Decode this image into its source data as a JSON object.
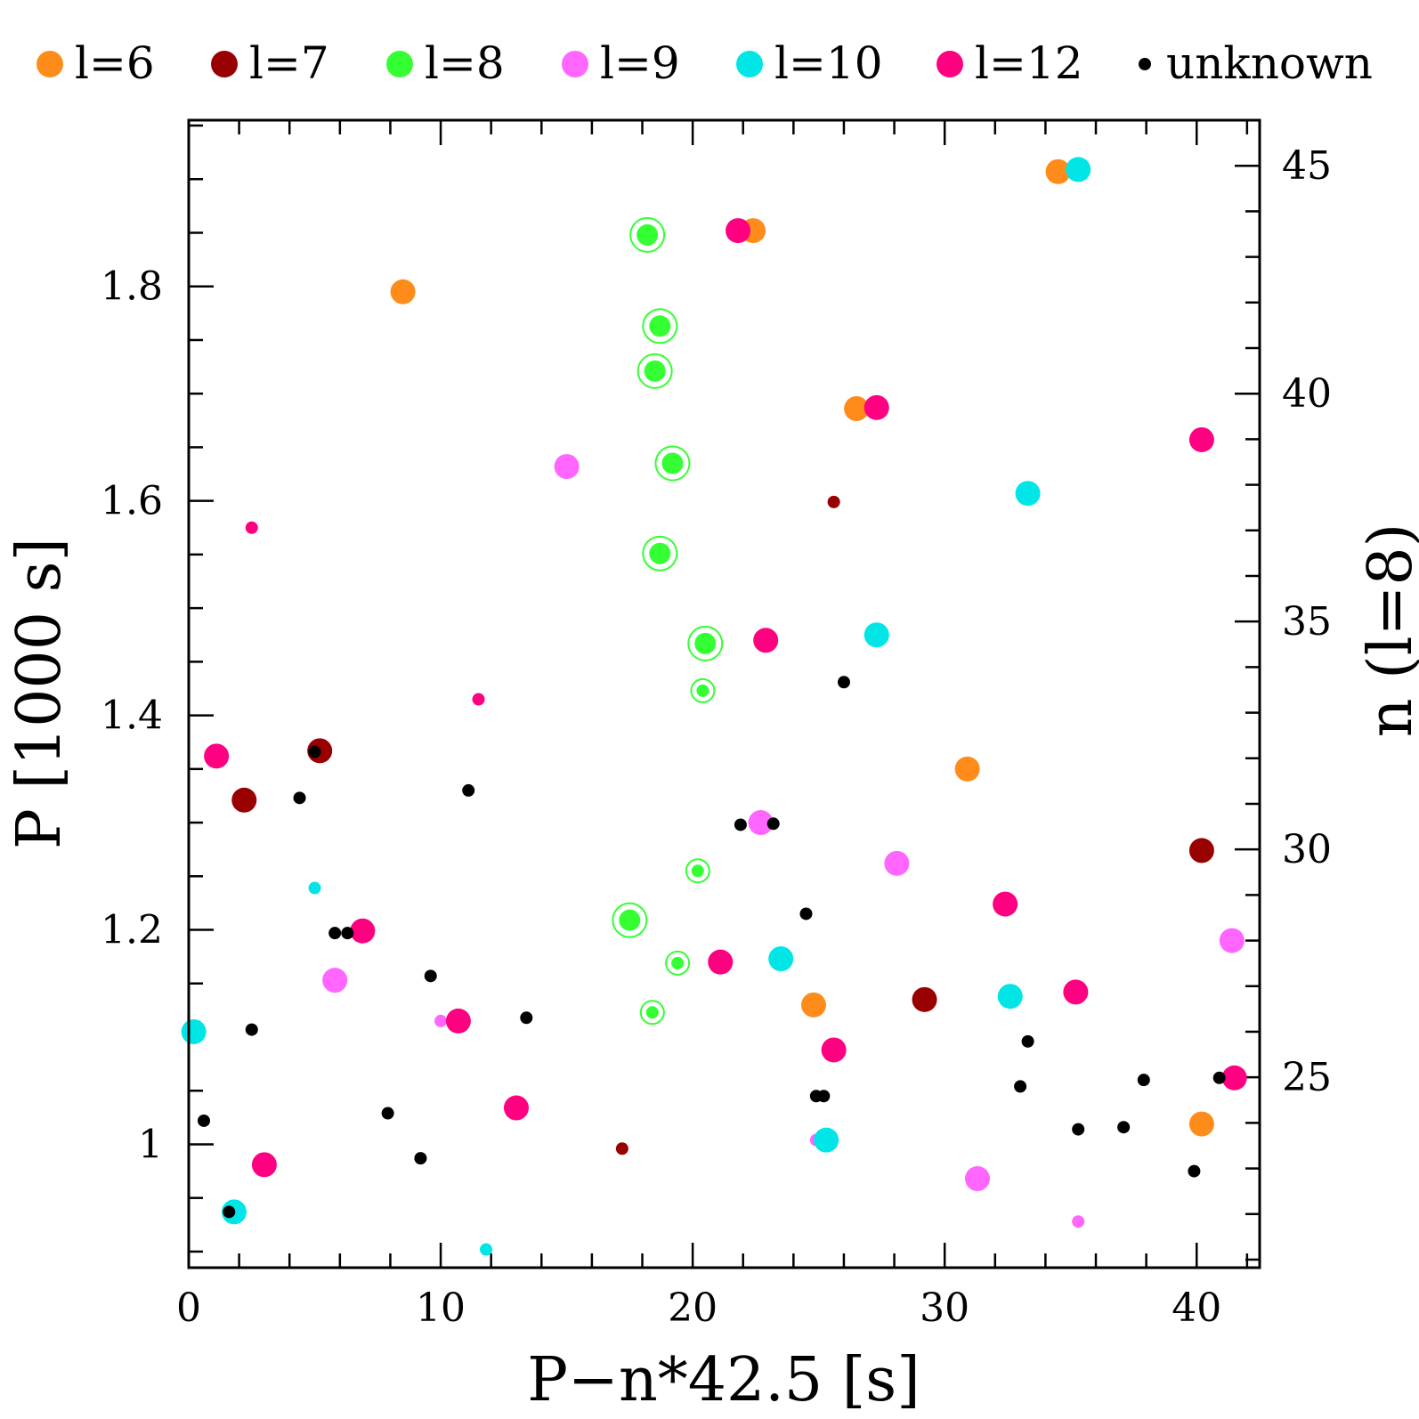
{
  "chart_data": {
    "type": "scatter",
    "xlabel": "P−n*42.5 [s]",
    "ylabel": "P [1000 s]",
    "y2label": "n (l=8)",
    "xlim": [
      0,
      42.5
    ],
    "ylim": [
      0.885,
      1.955
    ],
    "xticks": [
      0,
      10,
      20,
      30,
      40
    ],
    "xtick_labels": [
      "0",
      "10",
      "20",
      "30",
      "40"
    ],
    "yticks": [
      1.0,
      1.2,
      1.4,
      1.6,
      1.8
    ],
    "ytick_labels": [
      "1",
      "1.2",
      "1.4",
      "1.6",
      "1.8"
    ],
    "y2ticks": [
      25,
      30,
      35,
      40,
      45
    ],
    "y2tick_labels": [
      "25",
      "30",
      "35",
      "40",
      "45"
    ],
    "y2_period_per_n": 42.5,
    "legend_position": "top",
    "series": [
      {
        "name": "l=6",
        "label": "l=6",
        "color": "#ff8c1a",
        "points": [
          [
            34.5,
            1.907,
            "L"
          ],
          [
            22.4,
            1.852,
            "L"
          ],
          [
            8.5,
            1.795,
            "L"
          ],
          [
            26.5,
            1.686,
            "L"
          ],
          [
            30.9,
            1.35,
            "L"
          ],
          [
            24.8,
            1.13,
            "L"
          ],
          [
            40.2,
            1.019,
            "L"
          ]
        ]
      },
      {
        "name": "l=7",
        "label": "l=7",
        "color": "#990000",
        "points": [
          [
            5.2,
            1.367,
            "L"
          ],
          [
            2.2,
            1.321,
            "L"
          ],
          [
            40.2,
            1.274,
            "L"
          ],
          [
            29.2,
            1.135,
            "L"
          ],
          [
            25.6,
            1.599,
            "S"
          ],
          [
            17.2,
            0.996,
            "S"
          ]
        ]
      },
      {
        "name": "l=8",
        "label": "l=8",
        "color": "#33ff33",
        "ringed": true,
        "points": [
          [
            18.2,
            1.848,
            "L"
          ],
          [
            18.7,
            1.763,
            "L"
          ],
          [
            18.5,
            1.721,
            "L"
          ],
          [
            19.2,
            1.635,
            "L"
          ],
          [
            18.7,
            1.551,
            "L"
          ],
          [
            20.5,
            1.467,
            "L"
          ],
          [
            17.5,
            1.209,
            "L"
          ],
          [
            20.4,
            1.423,
            "S"
          ],
          [
            20.2,
            1.255,
            "S"
          ],
          [
            19.4,
            1.169,
            "S"
          ],
          [
            18.4,
            1.123,
            "S"
          ]
        ]
      },
      {
        "name": "l=9",
        "label": "l=9",
        "color": "#ff66ff",
        "points": [
          [
            15.0,
            1.632,
            "L"
          ],
          [
            22.7,
            1.3,
            "L"
          ],
          [
            28.1,
            1.262,
            "L"
          ],
          [
            5.8,
            1.153,
            "L"
          ],
          [
            41.4,
            1.19,
            "L"
          ],
          [
            31.3,
            0.968,
            "L"
          ],
          [
            10.0,
            1.115,
            "S"
          ],
          [
            24.9,
            1.004,
            "S"
          ],
          [
            35.3,
            0.928,
            "S"
          ]
        ]
      },
      {
        "name": "l=10",
        "label": "l=10",
        "color": "#00e6e6",
        "points": [
          [
            35.3,
            1.909,
            "L"
          ],
          [
            33.3,
            1.607,
            "L"
          ],
          [
            27.3,
            1.475,
            "L"
          ],
          [
            23.5,
            1.173,
            "L"
          ],
          [
            32.6,
            1.138,
            "L"
          ],
          [
            0.2,
            1.105,
            "L"
          ],
          [
            25.3,
            1.004,
            "L"
          ],
          [
            1.8,
            0.937,
            "L"
          ],
          [
            5.0,
            1.239,
            "S"
          ],
          [
            11.8,
            0.902,
            "S"
          ]
        ]
      },
      {
        "name": "l=12",
        "label": "l=12",
        "color": "#ff0080",
        "points": [
          [
            21.8,
            1.852,
            "L"
          ],
          [
            27.3,
            1.687,
            "L"
          ],
          [
            40.2,
            1.657,
            "L"
          ],
          [
            22.9,
            1.47,
            "L"
          ],
          [
            1.1,
            1.362,
            "L"
          ],
          [
            32.4,
            1.224,
            "L"
          ],
          [
            6.9,
            1.199,
            "L"
          ],
          [
            21.1,
            1.17,
            "L"
          ],
          [
            35.2,
            1.142,
            "L"
          ],
          [
            10.7,
            1.115,
            "L"
          ],
          [
            25.6,
            1.088,
            "L"
          ],
          [
            41.5,
            1.062,
            "L"
          ],
          [
            13.0,
            1.034,
            "L"
          ],
          [
            3.0,
            0.981,
            "L"
          ],
          [
            2.5,
            1.575,
            "S"
          ],
          [
            11.5,
            1.415,
            "S"
          ]
        ]
      },
      {
        "name": "unknown",
        "label": "unknown",
        "color": "#000000",
        "points": [
          [
            26.0,
            1.431,
            "S"
          ],
          [
            5.0,
            1.366,
            "S"
          ],
          [
            4.4,
            1.323,
            "S"
          ],
          [
            11.1,
            1.33,
            "S"
          ],
          [
            21.9,
            1.298,
            "S"
          ],
          [
            23.2,
            1.299,
            "S"
          ],
          [
            24.5,
            1.215,
            "S"
          ],
          [
            5.8,
            1.197,
            "S"
          ],
          [
            6.3,
            1.197,
            "S"
          ],
          [
            9.6,
            1.157,
            "S"
          ],
          [
            13.4,
            1.118,
            "S"
          ],
          [
            2.5,
            1.107,
            "S"
          ],
          [
            33.3,
            1.096,
            "S"
          ],
          [
            24.9,
            1.045,
            "S"
          ],
          [
            25.2,
            1.045,
            "S"
          ],
          [
            33.0,
            1.054,
            "S"
          ],
          [
            37.9,
            1.06,
            "S"
          ],
          [
            40.9,
            1.062,
            "S"
          ],
          [
            0.6,
            1.022,
            "S"
          ],
          [
            7.9,
            1.029,
            "S"
          ],
          [
            35.3,
            1.014,
            "S"
          ],
          [
            37.1,
            1.016,
            "S"
          ],
          [
            9.2,
            0.987,
            "S"
          ],
          [
            39.9,
            0.975,
            "S"
          ],
          [
            1.6,
            0.937,
            "S"
          ]
        ]
      }
    ]
  }
}
